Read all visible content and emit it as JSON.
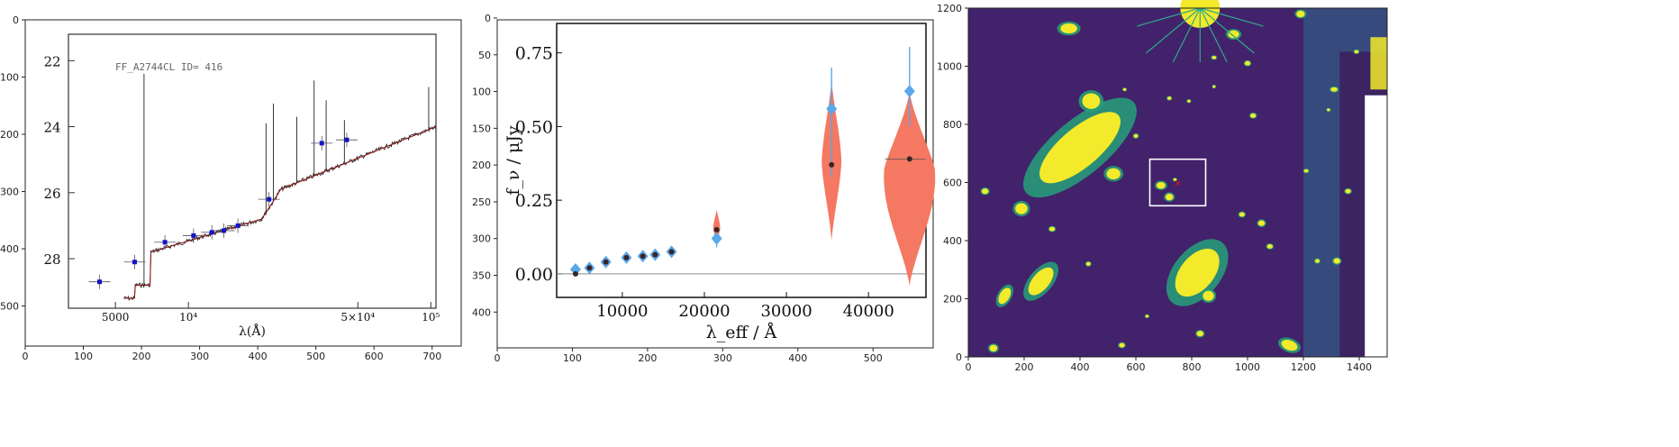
{
  "colors": {
    "photometry": "#1414c8",
    "model": "#8b1a1a",
    "spectrum": "#222222",
    "violin": "#f47862",
    "estimate": "#5aa7ea",
    "median": "#3a2424",
    "image_bg": "#42226b",
    "source": "#f2ea2a",
    "box": "#ffffff",
    "marker": "#e01515"
  },
  "chart_data": [
    {
      "type": "scatter",
      "xlim": [
        0,
        750
      ],
      "ylim": [
        570,
        0
      ],
      "x_ticks": [
        0,
        100,
        200,
        300,
        400,
        500,
        600,
        700
      ],
      "y_ticks": [
        0,
        100,
        200,
        300,
        400,
        500
      ],
      "inner": {
        "label": "FF_A2744CL ID= 416",
        "xlabel": "λ(Å)",
        "x_ticks": [
          "5000",
          "10⁴",
          "5×10⁴",
          "10⁵"
        ],
        "x_scale": "log",
        "y_ticks": [
          "22",
          "24",
          "26",
          "28"
        ],
        "y_range": [
          21.2,
          29.5
        ],
        "photometry": [
          {
            "x": 4300,
            "y": 28.7
          },
          {
            "x": 6000,
            "y": 28.1
          },
          {
            "x": 8000,
            "y": 27.5
          },
          {
            "x": 10500,
            "y": 27.3
          },
          {
            "x": 12500,
            "y": 27.2
          },
          {
            "x": 14000,
            "y": 27.15
          },
          {
            "x": 16000,
            "y": 27.0
          },
          {
            "x": 21500,
            "y": 26.2
          },
          {
            "x": 35500,
            "y": 24.5
          },
          {
            "x": 45000,
            "y": 24.4
          }
        ]
      }
    },
    {
      "type": "scatter",
      "xlim": [
        0,
        580
      ],
      "ylim": [
        445,
        0
      ],
      "x_ticks": [
        0,
        100,
        200,
        300,
        400,
        500
      ],
      "y_ticks": [
        0,
        50,
        100,
        150,
        200,
        250,
        300,
        350,
        400
      ],
      "inner": {
        "xlabel": "λ_eff / Å",
        "ylabel": "f_ν / μJy",
        "x_ticks": [
          10000,
          20000,
          30000,
          40000
        ],
        "y_ticks": [
          "0.00",
          "0.25",
          "0.50",
          "0.75"
        ],
        "xlim": [
          2000,
          47000
        ],
        "ylim": [
          -0.08,
          0.85
        ],
        "series": [
          {
            "name": "",
            "x": [
              4300,
              6000,
              8000,
              10500,
              12500,
              14000,
              16000,
              21500,
              35500,
              45000
            ],
            "values": [
              0.015,
              0.02,
              0.04,
              0.055,
              0.06,
              0.065,
              0.075,
              0.12,
              0.56,
              0.62
            ]
          },
          {
            "name": "",
            "x": [
              4300,
              6000,
              8000,
              10500,
              12500,
              14000,
              16000,
              21500,
              35500,
              45000
            ],
            "values": [
              0.0,
              0.02,
              0.04,
              0.055,
              0.06,
              0.065,
              0.075,
              0.15,
              0.37,
              0.39
            ]
          }
        ]
      }
    },
    {
      "type": "heatmap",
      "xlim": [
        0,
        1500
      ],
      "ylim": [
        0,
        1200
      ],
      "x_ticks": [
        0,
        200,
        400,
        600,
        800,
        1000,
        1200,
        1400
      ],
      "y_ticks": [
        0,
        200,
        400,
        600,
        800,
        1000,
        1200
      ]
    }
  ]
}
